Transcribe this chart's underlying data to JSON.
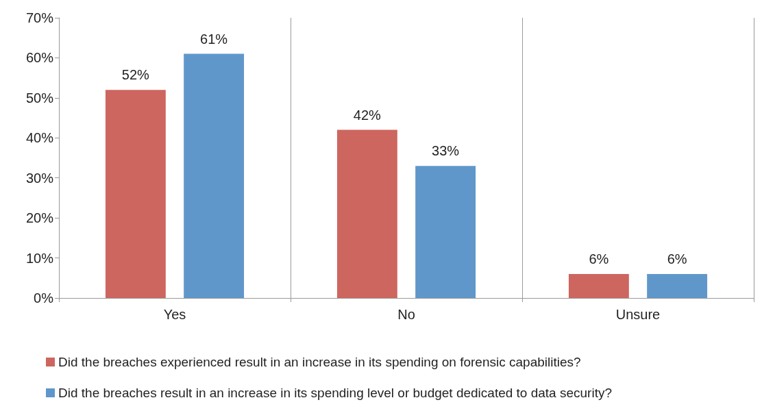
{
  "chart_data": {
    "type": "bar",
    "categories": [
      "Yes",
      "No",
      "Unsure"
    ],
    "series": [
      {
        "name": "Did the breaches experienced result in an increase in its spending on forensic capabilities?",
        "color": "#cd665f",
        "values": [
          52,
          42,
          6
        ],
        "value_labels": [
          "52%",
          "42%",
          "6%"
        ]
      },
      {
        "name": "Did the breaches result in an increase in its spending level or budget dedicated to data security?",
        "color": "#6097cb",
        "values": [
          61,
          33,
          6
        ],
        "value_labels": [
          "61%",
          "33%",
          "6%"
        ]
      }
    ],
    "ylim": [
      0,
      70
    ],
    "yticks": [
      {
        "value": 0,
        "label": "0%"
      },
      {
        "value": 10,
        "label": "10%"
      },
      {
        "value": 20,
        "label": "20%"
      },
      {
        "value": 30,
        "label": "30%"
      },
      {
        "value": 40,
        "label": "40%"
      },
      {
        "value": 50,
        "label": "50%"
      },
      {
        "value": 60,
        "label": "60%"
      },
      {
        "value": 70,
        "label": "70%"
      }
    ],
    "grid": "x",
    "legend": "bottom"
  }
}
